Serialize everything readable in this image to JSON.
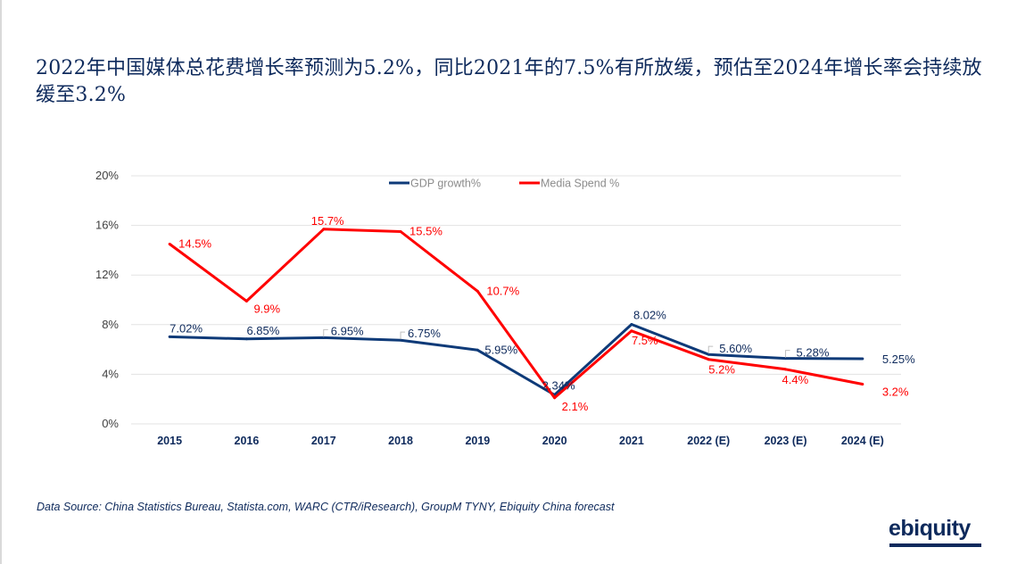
{
  "title": "2022年中国媒体总花费增长率预测为5.2%，同比2021年的7.5%有所放缓，预估至2024年增长率会持续放缓至3.2%",
  "source": "Data Source: China Statistics Bureau, Statista.com, WARC (CTR/iResearch), GroupM TYNY, Ebiquity China forecast",
  "logo": "ebiquity",
  "colors": {
    "gdp": "#0e3a78",
    "media": "#ff0000",
    "text": "#0e2a5c",
    "grid": "#e3e3e3",
    "axis_label": "#404040",
    "legend_text": "#8c8c8c"
  },
  "chart_data": {
    "type": "line",
    "title": "",
    "xlabel": "",
    "ylabel": "",
    "categories": [
      "2015",
      "2016",
      "2017",
      "2018",
      "2019",
      "2020",
      "2021",
      "2022 (E)",
      "2023 (E)",
      "2024 (E)"
    ],
    "ylim": [
      0,
      20
    ],
    "yticks": [
      0,
      4,
      8,
      12,
      16,
      20
    ],
    "ytick_labels": [
      "0%",
      "4%",
      "8%",
      "12%",
      "16%",
      "20%"
    ],
    "grid": true,
    "legend_position": "top-center",
    "series": [
      {
        "name": "GDP growth%",
        "color": "#0e3a78",
        "values": [
          7.02,
          6.85,
          6.95,
          6.75,
          5.95,
          2.34,
          8.02,
          5.6,
          5.28,
          5.25
        ],
        "labels": [
          "7.02%",
          "6.85%",
          "6.95%",
          "6.75%",
          "5.95%",
          "2.34%",
          "8.02%",
          "5.60%",
          "5.28%",
          "5.25%"
        ]
      },
      {
        "name": "Media Spend %",
        "color": "#ff0000",
        "values": [
          14.5,
          9.9,
          15.7,
          15.5,
          10.7,
          2.1,
          7.5,
          5.2,
          4.4,
          3.2
        ],
        "labels": [
          "14.5%",
          "9.9%",
          "15.7%",
          "15.5%",
          "10.7%",
          "2.1%",
          "7.5%",
          "5.2%",
          "4.4%",
          "3.2%"
        ]
      }
    ]
  }
}
